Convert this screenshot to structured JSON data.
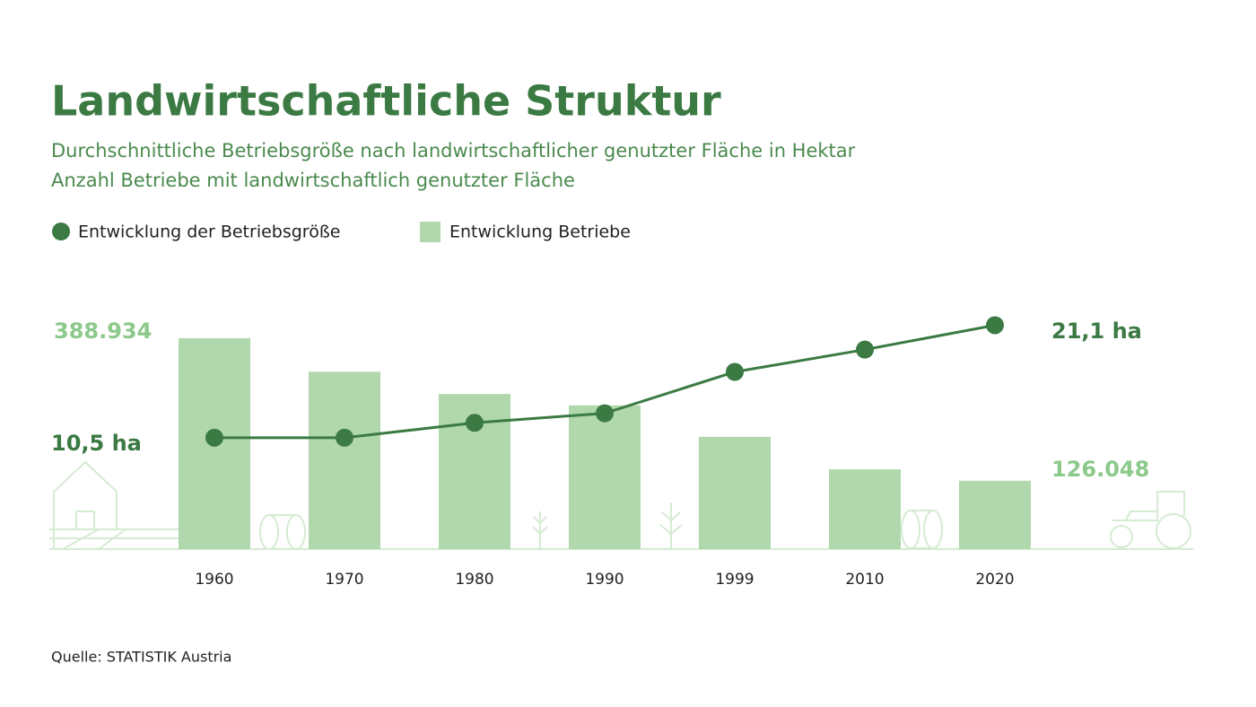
{
  "chart_data": {
    "type": "bar-line",
    "title": "Landwirtschaftliche Struktur",
    "subtitle": [
      "Durchschnittliche Betriebsgröße nach landwirtschaftlicher genutzter Fläche in Hektar",
      "Anzahl Betriebe mit landwirtschaftlich genutzter Fläche"
    ],
    "categories": [
      "1960",
      "1970",
      "1980",
      "1990",
      "1999",
      "2010",
      "2020"
    ],
    "series": [
      {
        "name": "Entwicklung der Betriebsgröße",
        "type": "line",
        "axis": "y2",
        "color": "#3b7a43",
        "values": [
          10.5,
          10.5,
          11.9,
          12.8,
          16.7,
          18.8,
          21.1
        ],
        "value_labels": [
          "10,5 ha",
          null,
          null,
          null,
          null,
          null,
          "21,1 ha"
        ]
      },
      {
        "name": "Entwicklung Betriebe",
        "type": "bar",
        "color": "#b0d8ac",
        "values": [
          388934,
          327000,
          286000,
          265000,
          207000,
          147000,
          126048
        ],
        "value_labels": [
          "388.934",
          null,
          null,
          null,
          null,
          null,
          "126.048"
        ]
      }
    ],
    "ylim": [
      0,
      450000
    ],
    "y2lim": [
      0,
      23
    ],
    "source": "Quelle: STATISTIK Austria"
  }
}
